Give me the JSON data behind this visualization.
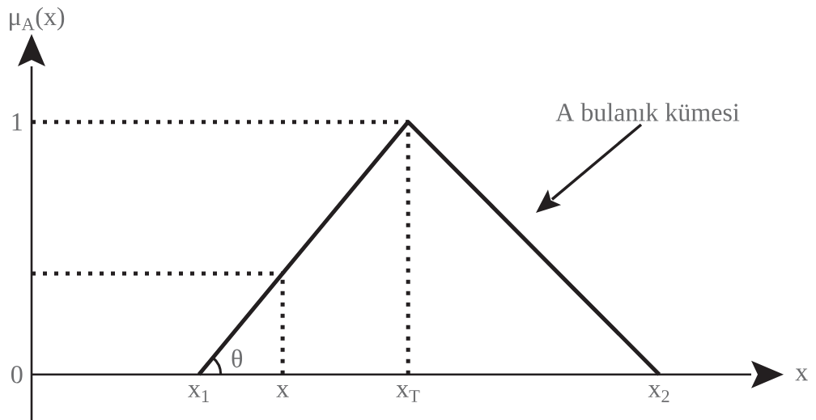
{
  "chart_data": {
    "type": "line",
    "xlabel": "x",
    "ylabel": "μ$_{A}$(x)",
    "categories": [
      null,
      null,
      null,
      null,
      "x$_{1}$",
      null,
      "x",
      null,
      null,
      "x$_{T}$",
      null,
      null,
      null,
      null,
      null,
      "x$_{2}$"
    ],
    "ylim": [
      -0.18,
      1.22
    ],
    "yticks": [
      0,
      1
    ],
    "series": [
      {
        "color": "#231f20",
        "values": [
          null,
          null,
          null,
          null,
          0,
          0.2,
          0.4,
          0.6,
          0.8,
          1,
          0.833,
          0.667,
          0.5,
          0.333,
          0.167,
          0
        ],
        "line_style": "solid"
      },
      {
        "color": "#231f20",
        "values": [
          1,
          1,
          1,
          1,
          1,
          1,
          1,
          1,
          1,
          1,
          null,
          null,
          null,
          null,
          null,
          null
        ],
        "line_style": "dotted"
      },
      {
        "color": "#231f20",
        "values": [
          0.4,
          0.4,
          0.4,
          0.4,
          0.4,
          0.4,
          0.4,
          null,
          null,
          null,
          null,
          null,
          null,
          null,
          null,
          null
        ],
        "line_style": "dotted"
      },
      {
        "color": "#231f20",
        "x": [
          "x$_{T}$",
          "x$_{T}$"
        ],
        "values": [
          0,
          1
        ],
        "line_style": "dotted"
      },
      {
        "color": "#231f20",
        "x": [
          "x",
          "x"
        ],
        "values": [
          0,
          0.4
        ],
        "line_style": "dotted"
      }
    ],
    "annotations": [
      "A bulanık kümesi",
      "θ"
    ]
  }
}
